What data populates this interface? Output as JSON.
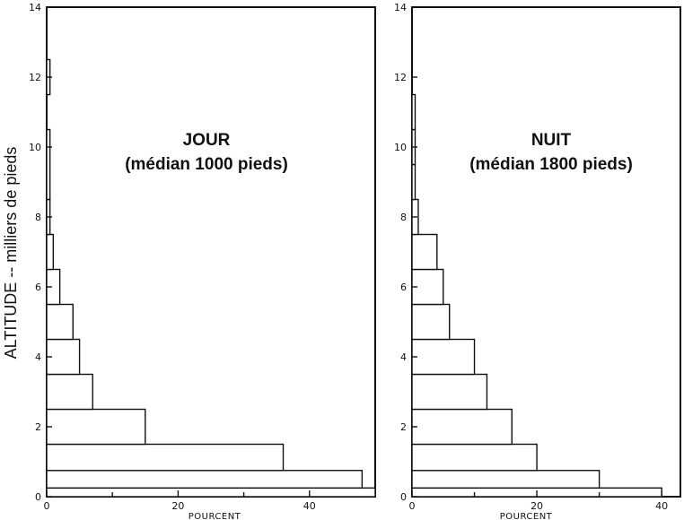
{
  "chart_data": {
    "type": "bar",
    "orientation": "horizontal",
    "ylabel": "ALTITUDE -- milliers de pieds",
    "panels": [
      {
        "title_line1": "JOUR",
        "title_line2": "(médian 1000 pieds)",
        "xlabel": "POURCENT",
        "xlim": [
          0,
          50
        ],
        "ylim": [
          0,
          14
        ],
        "xticks": [
          0,
          20,
          40
        ],
        "yticks": [
          0,
          2,
          4,
          6,
          8,
          10,
          12,
          14
        ],
        "bars": [
          {
            "y0": 0.0,
            "y1": 0.25,
            "value": 50
          },
          {
            "y0": 0.25,
            "y1": 0.75,
            "value": 48
          },
          {
            "y0": 0.75,
            "y1": 1.5,
            "value": 36
          },
          {
            "y0": 1.5,
            "y1": 2.5,
            "value": 15
          },
          {
            "y0": 2.5,
            "y1": 3.5,
            "value": 7
          },
          {
            "y0": 3.5,
            "y1": 4.5,
            "value": 5
          },
          {
            "y0": 4.5,
            "y1": 5.5,
            "value": 4
          },
          {
            "y0": 5.5,
            "y1": 6.5,
            "value": 2
          },
          {
            "y0": 6.5,
            "y1": 7.5,
            "value": 1
          },
          {
            "y0": 7.5,
            "y1": 8.5,
            "value": 0.5
          },
          {
            "y0": 8.5,
            "y1": 10.5,
            "value": 0.5
          },
          {
            "y0": 11.5,
            "y1": 12.5,
            "value": 0.5
          }
        ]
      },
      {
        "title_line1": "NUIT",
        "title_line2": "(médian 1800 pieds)",
        "xlabel": "POURCENT",
        "xlim": [
          0,
          43
        ],
        "ylim": [
          0,
          14
        ],
        "xticks": [
          0,
          20,
          40
        ],
        "yticks": [
          0,
          2,
          4,
          6,
          8,
          10,
          12,
          14
        ],
        "bars": [
          {
            "y0": 0.0,
            "y1": 0.25,
            "value": 40
          },
          {
            "y0": 0.25,
            "y1": 0.75,
            "value": 30
          },
          {
            "y0": 0.75,
            "y1": 1.5,
            "value": 20
          },
          {
            "y0": 1.5,
            "y1": 2.5,
            "value": 16
          },
          {
            "y0": 2.5,
            "y1": 3.5,
            "value": 12
          },
          {
            "y0": 3.5,
            "y1": 4.5,
            "value": 10
          },
          {
            "y0": 4.5,
            "y1": 5.5,
            "value": 6
          },
          {
            "y0": 5.5,
            "y1": 6.5,
            "value": 5
          },
          {
            "y0": 6.5,
            "y1": 7.5,
            "value": 4
          },
          {
            "y0": 7.5,
            "y1": 8.5,
            "value": 1
          },
          {
            "y0": 8.5,
            "y1": 9.5,
            "value": 0.5
          },
          {
            "y0": 9.5,
            "y1": 10.5,
            "value": 0.5
          },
          {
            "y0": 10.5,
            "y1": 11.5,
            "value": 0.5
          }
        ]
      }
    ]
  }
}
